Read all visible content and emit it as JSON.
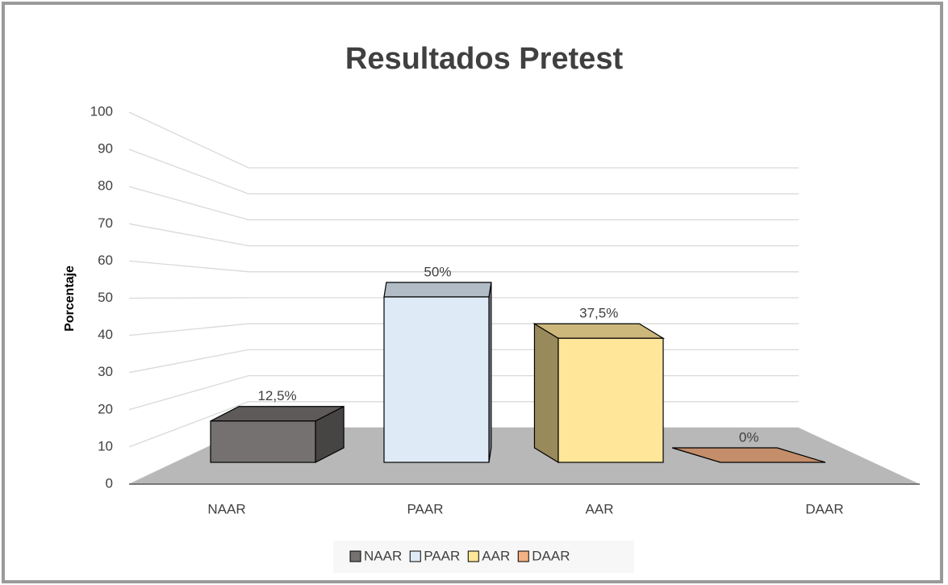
{
  "chart_data": {
    "type": "bar3d",
    "title": "Resultados Pretest",
    "y_label": "Porcentaje",
    "categories": [
      "NAAR",
      "PAAR",
      "AAR",
      "DAAR"
    ],
    "values": [
      12.5,
      50,
      37.5,
      0
    ],
    "value_labels": [
      "12,5%",
      "50%",
      "37,5%",
      "0%"
    ],
    "colors": [
      "#767171",
      "#deebf7",
      "#ffe699",
      "#f4b183"
    ],
    "ylim": [
      0,
      100
    ],
    "yticks": [
      0,
      10,
      20,
      30,
      40,
      50,
      60,
      70,
      80,
      90,
      100
    ],
    "grid": true,
    "legend": "bottom"
  }
}
